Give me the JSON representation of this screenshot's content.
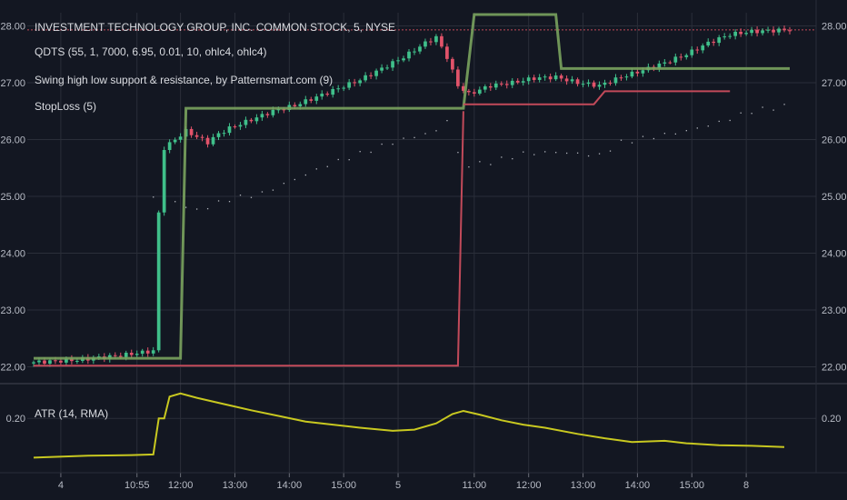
{
  "colors": {
    "background": "#131722",
    "grid": "#2a2e39",
    "text": "#d9dbe0",
    "up_candle": "#3fbf8a",
    "down_candle": "#e2536a",
    "support_resistance": "#7aa35e",
    "stoploss": "#c24a5a",
    "dots": "#b0b3bb",
    "atr": "#c8c820",
    "last_price_line": "#c24a5a"
  },
  "legend": {
    "title": "INVESTMENT TECHNOLOGY GROUP, INC. COMMON STOCK, 5, NYSE",
    "qdts": "QDTS (55, 1, 7000, 6.95, 0.01, 10, ohlc4, ohlc4)",
    "swing": "Swing high low support & resistance, by Patternsmart.com (9)",
    "stoploss": "StopLoss (5)",
    "atr": "ATR (14, RMA)"
  },
  "chart_data": {
    "type": "candlestick",
    "title": "INVESTMENT TECHNOLOGY GROUP, INC. COMMON STOCK, 5, NYSE",
    "bar_interval": "5",
    "x_ticks": [
      "4",
      "10:55",
      "12:00",
      "13:00",
      "14:00",
      "15:00",
      "5",
      "11:00",
      "12:00",
      "13:00",
      "14:00",
      "15:00",
      "8"
    ],
    "price_ticks": [
      "28.00",
      "27.00",
      "26.00",
      "25.00",
      "24.00",
      "23.00",
      "22.00"
    ],
    "atr_ticks": [
      "0.20"
    ],
    "price_range": [
      21.8,
      28.2
    ],
    "atr_range": [
      0.12,
      0.25
    ],
    "close_path": [
      [
        0,
        22.08
      ],
      [
        8,
        22.12
      ],
      [
        16,
        22.2
      ],
      [
        22,
        22.28
      ],
      [
        23,
        24.7
      ],
      [
        24,
        25.85
      ],
      [
        26,
        26.0
      ],
      [
        28,
        26.15
      ],
      [
        30,
        26.05
      ],
      [
        32,
        25.95
      ],
      [
        34,
        26.1
      ],
      [
        36,
        26.2
      ],
      [
        40,
        26.35
      ],
      [
        44,
        26.5
      ],
      [
        48,
        26.6
      ],
      [
        52,
        26.75
      ],
      [
        56,
        26.9
      ],
      [
        60,
        27.05
      ],
      [
        64,
        27.25
      ],
      [
        68,
        27.45
      ],
      [
        72,
        27.7
      ],
      [
        74,
        27.8
      ],
      [
        76,
        27.45
      ],
      [
        78,
        26.95
      ],
      [
        80,
        26.8
      ],
      [
        84,
        26.95
      ],
      [
        88,
        27.0
      ],
      [
        92,
        27.08
      ],
      [
        96,
        27.1
      ],
      [
        100,
        27.0
      ],
      [
        104,
        26.95
      ],
      [
        108,
        27.1
      ],
      [
        112,
        27.22
      ],
      [
        116,
        27.35
      ],
      [
        120,
        27.5
      ],
      [
        124,
        27.7
      ],
      [
        128,
        27.85
      ],
      [
        132,
        27.9
      ],
      [
        136,
        27.92
      ],
      [
        139,
        27.93
      ]
    ],
    "support_resistance": [
      [
        [
          0,
          22.15
        ],
        [
          27,
          22.15
        ],
        [
          28,
          26.55
        ],
        [
          79,
          26.55
        ],
        [
          81,
          28.2
        ],
        [
          96,
          28.2
        ],
        [
          97,
          27.25
        ],
        [
          139,
          27.25
        ]
      ]
    ],
    "stoploss": [
      [
        [
          0,
          22.02
        ],
        [
          78,
          22.02
        ],
        [
          79,
          26.5
        ]
      ],
      [
        [
          79,
          26.62
        ],
        [
          103,
          26.62
        ],
        [
          105,
          26.85
        ],
        [
          128,
          26.85
        ]
      ]
    ],
    "dots_path": [
      [
        22,
        25.0
      ],
      [
        26,
        24.9
      ],
      [
        30,
        24.75
      ],
      [
        36,
        24.95
      ],
      [
        42,
        25.05
      ],
      [
        48,
        25.3
      ],
      [
        54,
        25.55
      ],
      [
        60,
        25.75
      ],
      [
        66,
        25.95
      ],
      [
        72,
        26.1
      ],
      [
        74,
        26.15
      ],
      [
        76,
        26.35
      ],
      [
        78,
        25.75
      ],
      [
        80,
        25.55
      ],
      [
        84,
        25.6
      ],
      [
        90,
        25.75
      ],
      [
        96,
        25.78
      ],
      [
        100,
        25.75
      ],
      [
        104,
        25.72
      ],
      [
        108,
        25.95
      ],
      [
        114,
        26.05
      ],
      [
        120,
        26.15
      ],
      [
        126,
        26.3
      ],
      [
        132,
        26.5
      ],
      [
        139,
        26.6
      ]
    ],
    "atr_path": [
      [
        0,
        0.137
      ],
      [
        10,
        0.14
      ],
      [
        18,
        0.141
      ],
      [
        22,
        0.142
      ],
      [
        23,
        0.2
      ],
      [
        24,
        0.2
      ],
      [
        25,
        0.235
      ],
      [
        27,
        0.24
      ],
      [
        30,
        0.233
      ],
      [
        35,
        0.223
      ],
      [
        40,
        0.213
      ],
      [
        45,
        0.204
      ],
      [
        50,
        0.195
      ],
      [
        55,
        0.19
      ],
      [
        60,
        0.185
      ],
      [
        66,
        0.18
      ],
      [
        70,
        0.182
      ],
      [
        74,
        0.192
      ],
      [
        77,
        0.207
      ],
      [
        79,
        0.212
      ],
      [
        82,
        0.206
      ],
      [
        86,
        0.197
      ],
      [
        90,
        0.19
      ],
      [
        94,
        0.185
      ],
      [
        100,
        0.175
      ],
      [
        105,
        0.168
      ],
      [
        110,
        0.162
      ],
      [
        116,
        0.164
      ],
      [
        120,
        0.16
      ],
      [
        126,
        0.157
      ],
      [
        132,
        0.156
      ],
      [
        138,
        0.154
      ]
    ],
    "last_price": 27.93,
    "grid": true
  }
}
